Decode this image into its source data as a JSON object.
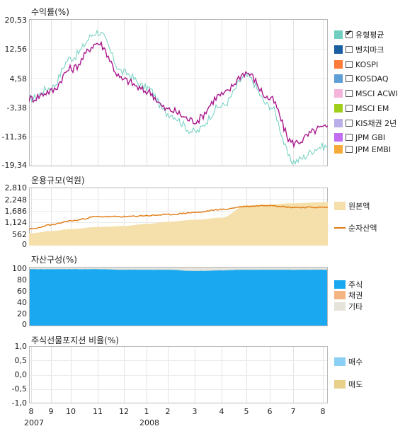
{
  "panel1": {
    "title": "수익률(%)",
    "yticks": [
      "20,53",
      "12,56",
      "4,58",
      "-3,38",
      "-11,36",
      "-19,34"
    ],
    "legend": [
      {
        "label": "유형평균",
        "color": "#70cfc0",
        "checked": true
      },
      {
        "label": "벤치마크",
        "color": "#1a5fa0",
        "checked": false
      },
      {
        "label": "KOSPI",
        "color": "#ff7b3a",
        "checked": false
      },
      {
        "label": "KOSDAQ",
        "color": "#5f9fd8",
        "checked": false
      },
      {
        "label": "MSCI ACWI",
        "color": "#f5b4dc",
        "checked": false
      },
      {
        "label": "MSCI EM",
        "color": "#9fcf1a",
        "checked": false
      },
      {
        "label": "KIS채권 2년",
        "color": "#b9aee8",
        "checked": false
      },
      {
        "label": "JPM GBI",
        "color": "#c26cf0",
        "checked": false
      },
      {
        "label": "JPM EMBI",
        "color": "#f5aa3a",
        "checked": false
      }
    ]
  },
  "panel2": {
    "title": "운용규모(억원)",
    "yticks": [
      "2,810",
      "2,248",
      "1,686",
      "1,124",
      "562",
      "0"
    ],
    "legend": [
      {
        "label": "원본액",
        "color": "#f5dfab"
      },
      {
        "label": "순자산액",
        "color": "#e07a10"
      }
    ]
  },
  "panel3": {
    "title": "자산구성(%)",
    "yticks": [
      "100",
      "80",
      "60",
      "40",
      "20",
      "0"
    ],
    "legend": [
      {
        "label": "주식",
        "color": "#1aa8f0"
      },
      {
        "label": "채권",
        "color": "#f5b483"
      },
      {
        "label": "기타",
        "color": "#e6e4da"
      }
    ]
  },
  "panel4": {
    "title": "주식선물포지션 비율(%)",
    "yticks": [
      "1,0",
      "0,5",
      "0,0",
      "-0,5",
      "-1,0"
    ],
    "legend": [
      {
        "label": "매수",
        "color": "#8ccff5"
      },
      {
        "label": "매도",
        "color": "#e8cf8a"
      }
    ]
  },
  "xaxis": {
    "months": [
      "8",
      "9",
      "10",
      "11",
      "12",
      "1",
      "2",
      "3",
      "4",
      "5",
      "6",
      "7",
      "8"
    ],
    "year_labels": [
      {
        "label": "2007",
        "month_index": 0
      },
      {
        "label": "2008",
        "month_index": 5
      }
    ]
  },
  "chart_data": [
    {
      "type": "line",
      "title": "수익률(%)",
      "x": [
        "2007-08",
        "2007-09",
        "2007-10",
        "2007-11",
        "2007-12",
        "2008-01",
        "2008-02",
        "2008-03",
        "2008-04",
        "2008-05",
        "2008-06",
        "2008-07",
        "2008-08"
      ],
      "ylim": [
        -19.34,
        20.53
      ],
      "series": [
        {
          "name": "유형평균",
          "color": "#70cfc0",
          "values": [
            -1,
            2,
            10,
            17,
            6,
            2,
            -5,
            -10,
            -3,
            5,
            -3,
            -18,
            -14
          ]
        },
        {
          "values": [
            -1,
            1,
            7,
            14,
            4,
            1,
            -4,
            -7,
            0,
            6,
            -1,
            -13,
            -9
          ],
          "color": "#a8168c"
        }
      ]
    },
    {
      "type": "area",
      "title": "운용규모(억원)",
      "x": [
        "2007-08",
        "2007-09",
        "2007-10",
        "2007-11",
        "2007-12",
        "2008-01",
        "2008-02",
        "2008-03",
        "2008-04",
        "2008-05",
        "2008-06",
        "2008-07",
        "2008-08"
      ],
      "ylim": [
        0,
        2810
      ],
      "series": [
        {
          "name": "원본액",
          "color": "#f5dfab",
          "values": [
            600,
            700,
            800,
            900,
            950,
            1050,
            1150,
            1250,
            1350,
            1950,
            2000,
            2050,
            2100
          ]
        },
        {
          "name": "순자산액",
          "color": "#e07a10",
          "values": [
            800,
            1000,
            1200,
            1400,
            1400,
            1450,
            1500,
            1600,
            1750,
            1900,
            1950,
            1850,
            1850
          ]
        }
      ]
    },
    {
      "type": "area",
      "title": "자산구성(%)",
      "x": [
        "2007-08",
        "2007-09",
        "2007-10",
        "2007-11",
        "2007-12",
        "2008-01",
        "2008-02",
        "2008-03",
        "2008-04",
        "2008-05",
        "2008-06",
        "2008-07",
        "2008-08"
      ],
      "ylim": [
        0,
        100
      ],
      "series": [
        {
          "name": "주식",
          "color": "#1aa8f0",
          "values": [
            96,
            96,
            96,
            96,
            95,
            95,
            95,
            93,
            94,
            95,
            95,
            95,
            95
          ]
        },
        {
          "name": "채권",
          "color": "#f5b483",
          "values": [
            0,
            0,
            0,
            0,
            0,
            0,
            0,
            0,
            0,
            0,
            0,
            0,
            0
          ]
        },
        {
          "name": "기타",
          "color": "#e6e4da",
          "values": [
            4,
            4,
            4,
            4,
            5,
            5,
            5,
            7,
            6,
            5,
            5,
            5,
            5
          ]
        }
      ]
    },
    {
      "type": "bar",
      "title": "주식선물포지션 비율(%)",
      "ylim": [
        -1.0,
        1.0
      ],
      "series": [
        {
          "name": "매수",
          "color": "#8ccff5",
          "values": []
        },
        {
          "name": "매도",
          "color": "#e8cf8a",
          "values": []
        }
      ]
    }
  ]
}
